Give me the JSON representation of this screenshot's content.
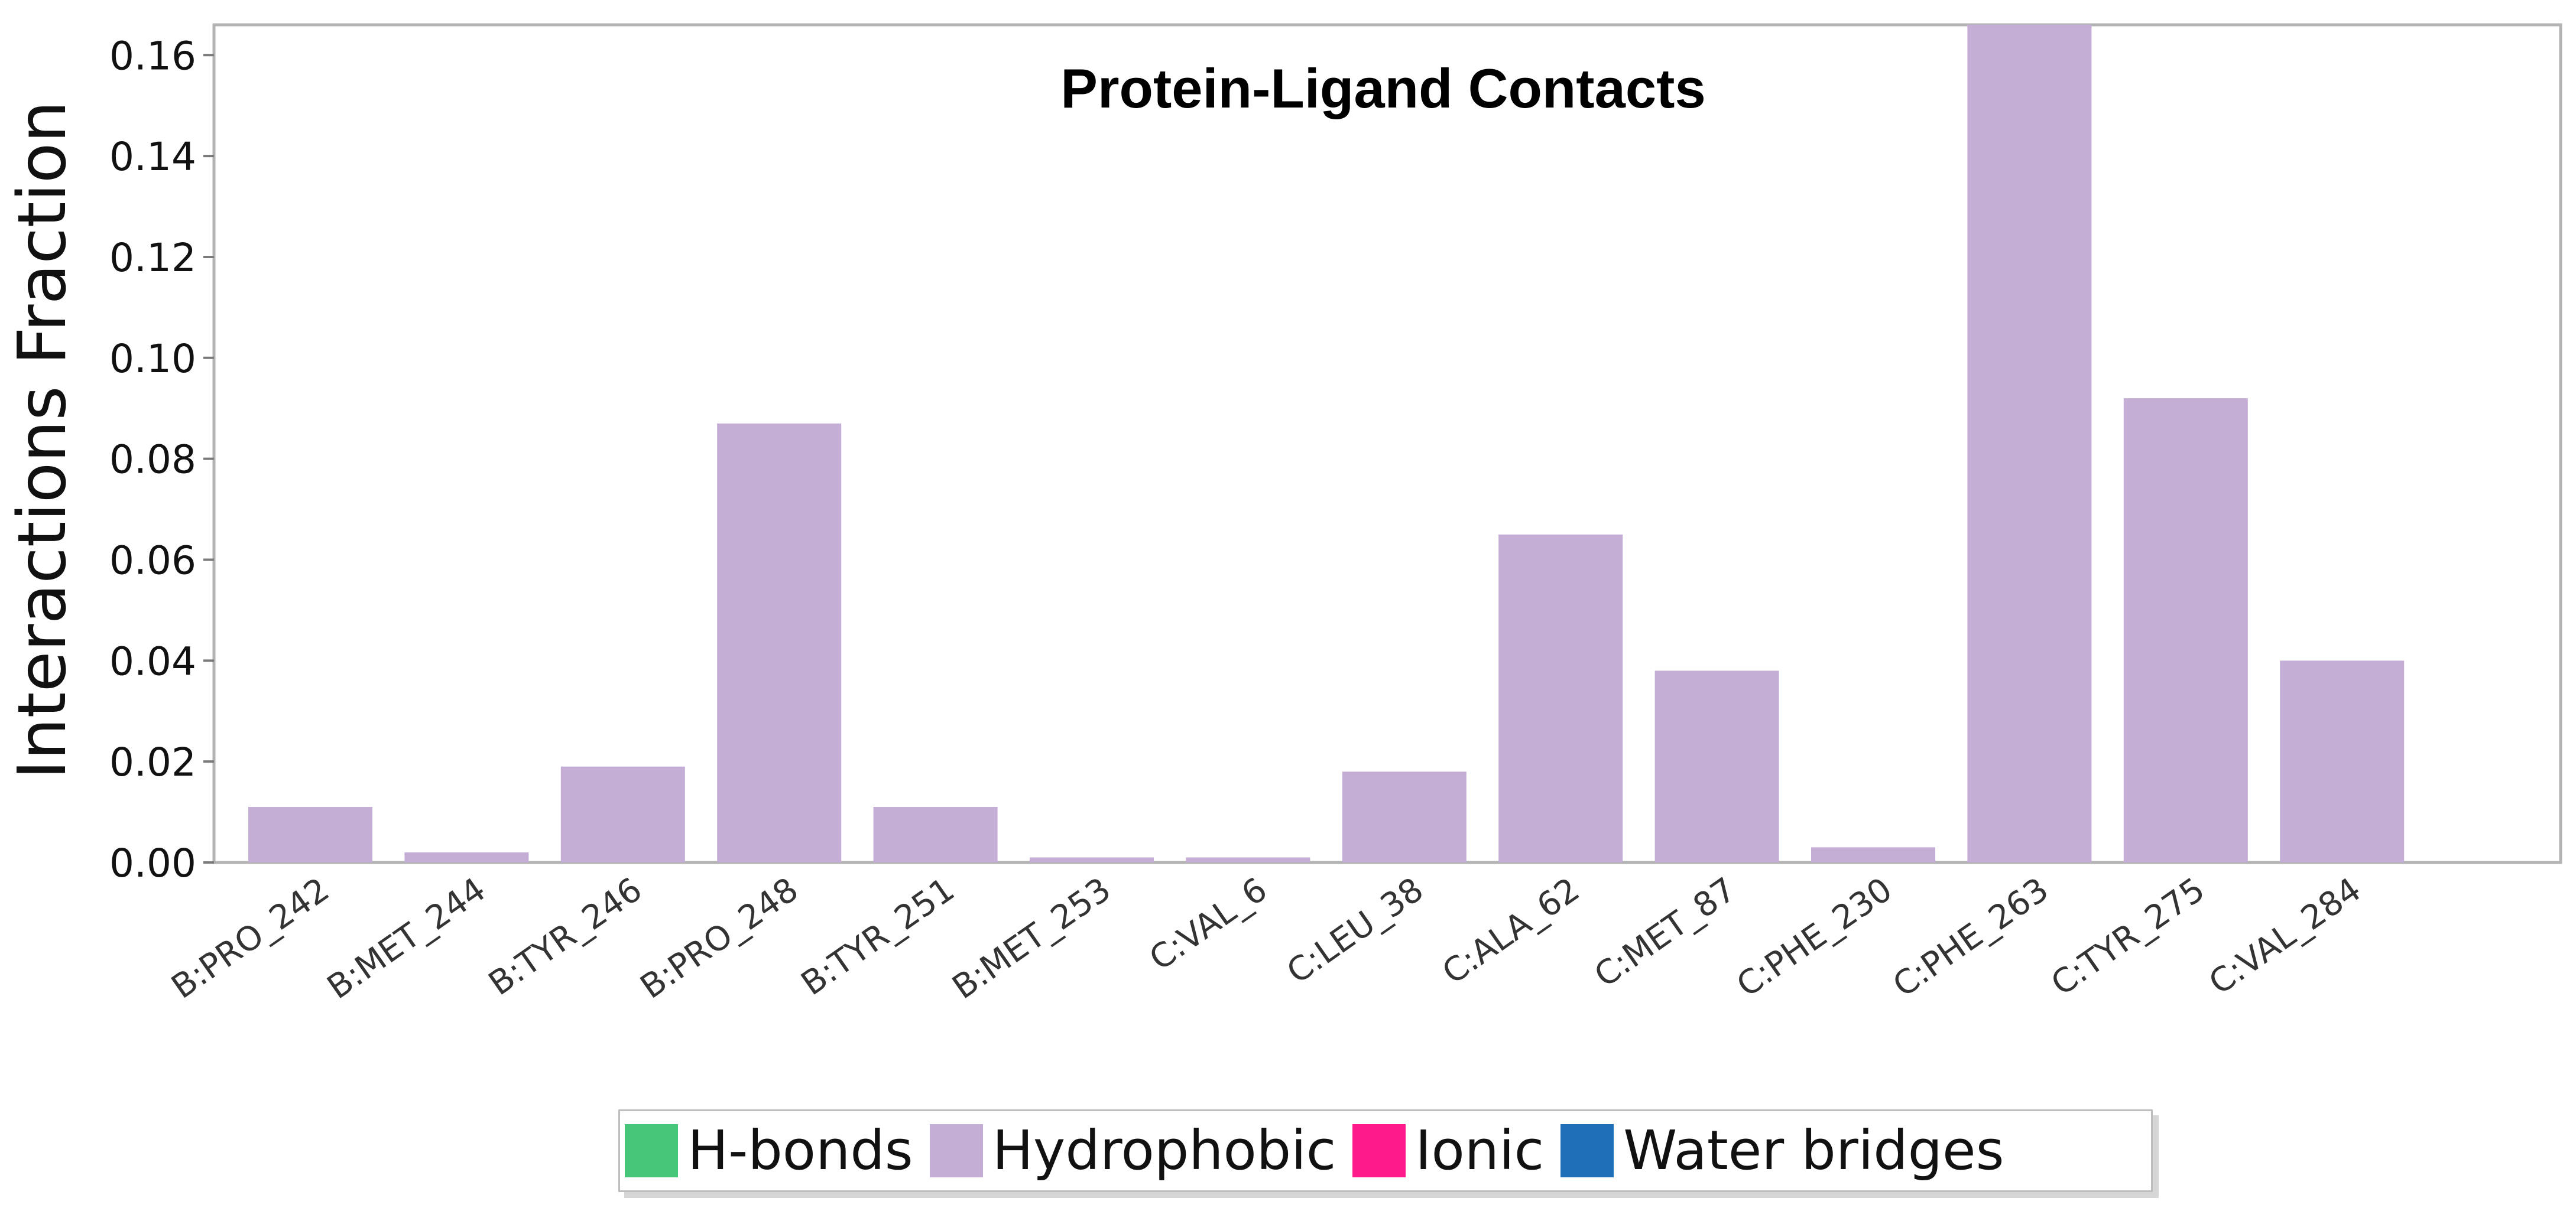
{
  "chart_data": {
    "type": "bar",
    "title": "Protein-Ligand Contacts",
    "xlabel": "",
    "ylabel": "Interactions Fraction",
    "ylim": [
      0,
      0.166
    ],
    "yticks": [
      "0.00",
      "0.02",
      "0.04",
      "0.06",
      "0.08",
      "0.10",
      "0.12",
      "0.14",
      "0.16"
    ],
    "categories": [
      "B:PRO_242",
      "B:MET_244",
      "B:TYR_246",
      "B:PRO_248",
      "B:TYR_251",
      "B:MET_253",
      "C:VAL_6",
      "C:LEU_38",
      "C:ALA_62",
      "C:MET_87",
      "C:PHE_230",
      "C:PHE_263",
      "C:TYR_275",
      "C:VAL_284"
    ],
    "series": [
      {
        "name": "H-bonds",
        "color": "#45c678",
        "values": [
          0,
          0,
          0,
          0,
          0,
          0,
          0,
          0,
          0,
          0,
          0,
          0,
          0,
          0
        ]
      },
      {
        "name": "Hydrophobic",
        "color": "#c4aed6",
        "values": [
          0.011,
          0.002,
          0.019,
          0.087,
          0.011,
          0.001,
          0.001,
          0.018,
          0.065,
          0.038,
          0.003,
          0.166,
          0.092,
          0.04
        ]
      },
      {
        "name": "Ionic",
        "color": "#ff1a8c",
        "values": [
          0,
          0,
          0,
          0,
          0,
          0,
          0,
          0,
          0,
          0,
          0,
          0,
          0,
          0
        ]
      },
      {
        "name": "Water bridges",
        "color": "#1e6fb8",
        "values": [
          0,
          0,
          0,
          0,
          0,
          0,
          0,
          0,
          0,
          0,
          0,
          0,
          0,
          0
        ]
      }
    ],
    "grid": false,
    "legend_position": "bottom"
  },
  "legend": {
    "items": [
      {
        "label": "H-bonds",
        "color": "#45c678"
      },
      {
        "label": "Hydrophobic",
        "color": "#c4aed6"
      },
      {
        "label": "Ionic",
        "color": "#ff1a8c"
      },
      {
        "label": "Water bridges",
        "color": "#1e6fb8"
      }
    ]
  }
}
